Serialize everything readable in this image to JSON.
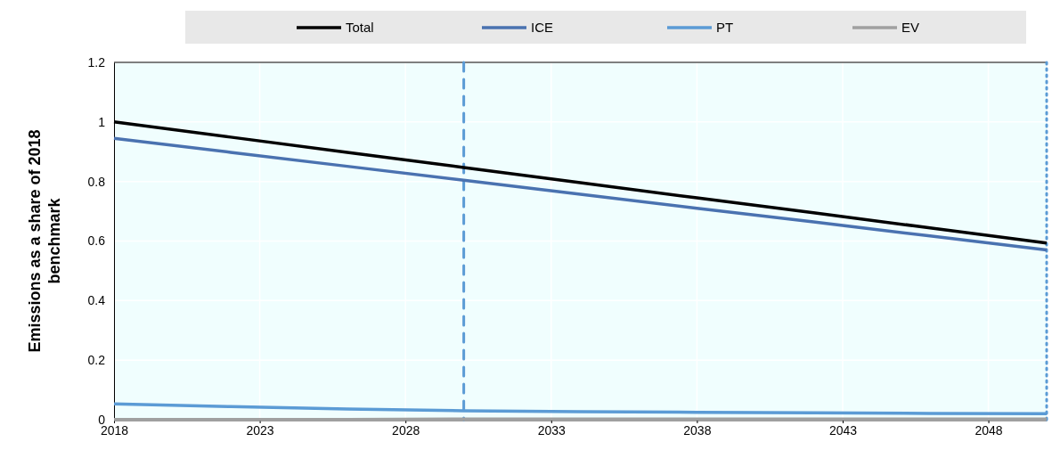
{
  "chart_data": {
    "type": "line",
    "ylabel": "Emissions as a share of 2018 benchmark",
    "x": [
      2018,
      2022,
      2026,
      2030,
      2034,
      2038,
      2042,
      2046,
      2050
    ],
    "series": [
      {
        "name": "Total",
        "color": "#000000",
        "values": [
          1.0,
          0.949,
          0.898,
          0.847,
          0.796,
          0.745,
          0.695,
          0.644,
          0.593
        ]
      },
      {
        "name": "ICE",
        "color": "#4a72b0",
        "values": [
          0.945,
          0.898,
          0.851,
          0.804,
          0.757,
          0.71,
          0.664,
          0.617,
          0.57
        ]
      },
      {
        "name": "PT",
        "color": "#5b9bd5",
        "values": [
          0.053,
          0.044,
          0.036,
          0.03,
          0.027,
          0.025,
          0.023,
          0.021,
          0.02
        ]
      },
      {
        "name": "EV",
        "color": "#a0a0a0",
        "values": [
          0.001,
          0.001,
          0.001,
          0.002,
          0.002,
          0.002,
          0.002,
          0.002,
          0.002
        ]
      }
    ],
    "xlim": [
      2018,
      2050
    ],
    "xticks": [
      2018,
      2023,
      2028,
      2033,
      2038,
      2043,
      2048
    ],
    "ylim": [
      0,
      1.2
    ],
    "yticks": [
      0,
      0.2,
      0.4,
      0.6,
      0.8,
      1,
      1.2
    ],
    "ref_lines": [
      {
        "axis": "x",
        "value": 2030,
        "color": "#5b9bd5",
        "line_style": "dashed"
      },
      {
        "axis": "x",
        "value": 2050,
        "color": "#5b9bd5",
        "line_style": "dotted"
      }
    ],
    "grid": true,
    "legend": "top",
    "line_style": "solid"
  }
}
